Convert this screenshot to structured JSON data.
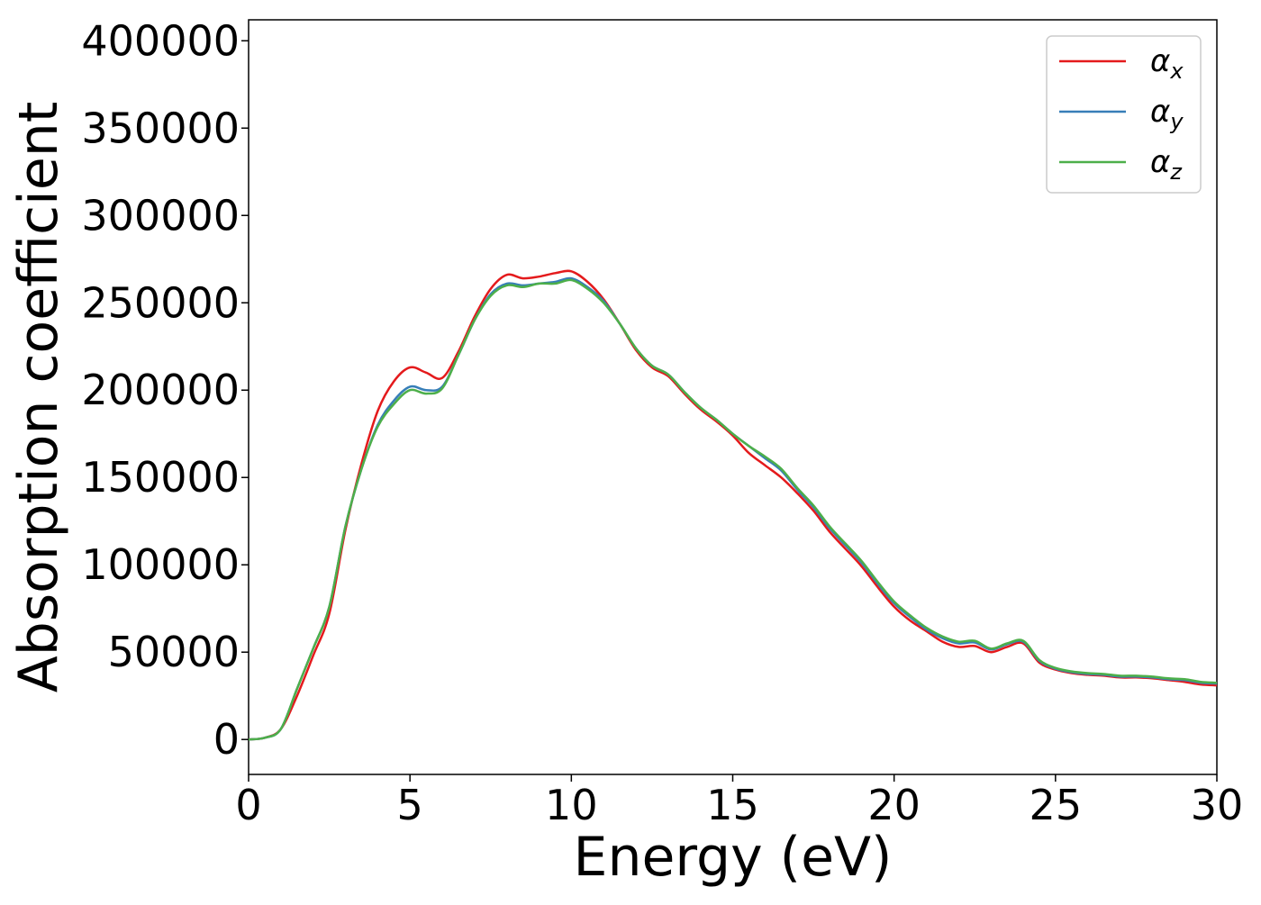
{
  "chart_data": {
    "type": "line",
    "title": "",
    "xlabel": "Energy (eV)",
    "ylabel": "Absorption coefficient",
    "xlim": [
      0,
      30
    ],
    "ylim": [
      -20000,
      412000
    ],
    "xticks": [
      0,
      5,
      10,
      15,
      20,
      25,
      30
    ],
    "yticks": [
      0,
      50000,
      100000,
      150000,
      200000,
      250000,
      300000,
      350000,
      400000
    ],
    "grid": false,
    "legend_position": "top-right",
    "x": [
      0,
      0.5,
      1.0,
      1.5,
      2.0,
      2.5,
      3.0,
      3.5,
      4.0,
      4.5,
      5.0,
      5.5,
      6.0,
      6.5,
      7.0,
      7.5,
      8.0,
      8.5,
      9.0,
      9.5,
      10.0,
      10.5,
      11.0,
      11.5,
      12.0,
      12.5,
      13.0,
      13.5,
      14.0,
      14.5,
      15.0,
      15.5,
      16.0,
      16.5,
      17.0,
      17.5,
      18.0,
      18.5,
      19.0,
      19.5,
      20.0,
      20.5,
      21.0,
      21.5,
      22.0,
      22.5,
      23.0,
      23.5,
      24.0,
      24.5,
      25.0,
      25.5,
      26.0,
      26.5,
      27.0,
      27.5,
      28.0,
      28.5,
      29.0,
      29.5,
      30.0
    ],
    "series": [
      {
        "name": "α_x",
        "color": "#e41a1c",
        "values": [
          0,
          1000,
          6000,
          25000,
          48000,
          72000,
          120000,
          158000,
          188000,
          205000,
          213000,
          210000,
          207000,
          222000,
          242000,
          258000,
          266000,
          264000,
          265000,
          267000,
          268000,
          262000,
          252000,
          238000,
          223000,
          213000,
          208000,
          198000,
          189000,
          182000,
          174000,
          164000,
          157000,
          150000,
          141000,
          131000,
          119000,
          109000,
          99000,
          87000,
          76000,
          68000,
          62000,
          56000,
          53000,
          53500,
          50000,
          53000,
          55000,
          44000,
          40000,
          38000,
          37000,
          36500,
          35500,
          35500,
          35000,
          34000,
          33000,
          31500,
          31000
        ]
      },
      {
        "name": "α_y",
        "color": "#377eb8",
        "values": [
          0,
          1000,
          6000,
          29000,
          52000,
          76000,
          122000,
          155000,
          180000,
          194000,
          202000,
          200000,
          202000,
          220000,
          240000,
          255000,
          261000,
          260000,
          261000,
          262000,
          264000,
          259000,
          251000,
          238000,
          224000,
          214000,
          209000,
          199000,
          190000,
          183000,
          175000,
          168000,
          161000,
          154000,
          143000,
          133000,
          121000,
          111000,
          101000,
          89000,
          78000,
          70000,
          63000,
          58000,
          55000,
          55500,
          51500,
          54500,
          56000,
          45000,
          40500,
          38500,
          37500,
          37000,
          36000,
          36000,
          35500,
          34500,
          34000,
          32500,
          32000
        ]
      },
      {
        "name": "α_z",
        "color": "#4daf4a",
        "values": [
          0,
          1000,
          6000,
          29000,
          52000,
          76000,
          122000,
          155000,
          179000,
          192000,
          200000,
          198000,
          201000,
          220000,
          240000,
          254000,
          260000,
          259000,
          261000,
          261000,
          263000,
          258000,
          250000,
          238000,
          224000,
          214000,
          209000,
          199000,
          190000,
          183000,
          175000,
          168000,
          162000,
          155000,
          144000,
          134000,
          122000,
          112000,
          102000,
          90000,
          79000,
          71000,
          64000,
          59000,
          56000,
          56500,
          52000,
          55000,
          56500,
          45500,
          41000,
          39000,
          38000,
          37500,
          36500,
          36500,
          36000,
          35000,
          34500,
          33000,
          32500
        ]
      }
    ]
  },
  "legend": {
    "entries": [
      {
        "symbol": "α",
        "subscript": "x",
        "color": "#e41a1c"
      },
      {
        "symbol": "α",
        "subscript": "y",
        "color": "#377eb8"
      },
      {
        "symbol": "α",
        "subscript": "z",
        "color": "#4daf4a"
      }
    ]
  }
}
